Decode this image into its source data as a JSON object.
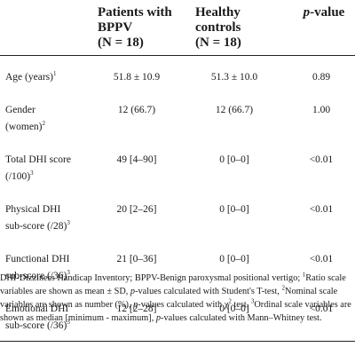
{
  "table": {
    "headers": {
      "col1": "",
      "col2_line1": "Patients with",
      "col2_line2": "BPPV",
      "col2_line3": "(N = 18)",
      "col3_line1": "Healthy",
      "col3_line2": "controls",
      "col3_line3": "(N = 18)",
      "col4_p": "p",
      "col4_rest": "-value"
    },
    "rows": [
      {
        "label_line1": "Age (years)",
        "label_sup1": "1",
        "label_line2": "",
        "label_sup2": "",
        "patients": "51.8 ± 10.9",
        "controls": "51.3 ± 10.0",
        "p": "0.89"
      },
      {
        "label_line1": "Gender",
        "label_sup1": "",
        "label_line2": "(women)",
        "label_sup2": "2",
        "patients": "12 (66.7)",
        "controls": "12 (66.7)",
        "p": "1.00"
      },
      {
        "label_line1": "Total DHI score",
        "label_sup1": "",
        "label_line2": "(/100)",
        "label_sup2": "3",
        "patients": "49 [4–90]",
        "controls": "0 [0–0]",
        "p": "<0.01"
      },
      {
        "label_line1": "Physical DHI",
        "label_sup1": "",
        "label_line2": "sub-score (/28)",
        "label_sup2": "3",
        "patients": "20 [2–26]",
        "controls": "0 [0–0]",
        "p": "<0.01"
      },
      {
        "label_line1": "Functional DHI",
        "label_sup1": "",
        "label_line2": "sub-score (/36)",
        "label_sup2": "3",
        "patients": "21 [0–36]",
        "controls": "0 [0–0]",
        "p": "<0.01"
      },
      {
        "label_line1": "Emotional DHI",
        "label_sup1": "",
        "label_line2": "sub-score (/36)",
        "label_sup2": "3",
        "patients": "12 [2–28]",
        "controls": "0 [0–0]",
        "p": "<0.01"
      }
    ]
  },
  "footnote": {
    "part1": "DHI-Dizziness Handicap Inventory; BPPV-Benign paroxysmal positional vertigo; ",
    "sup1": "1",
    "part2": "Ratio scale variables are shown as mean ± SD, ",
    "p1": "p",
    "part3": "-values calculated with Student's T-test, ",
    "sup2": "2",
    "part4": "Nominal scale variables are shown as number (%), ",
    "p2": "p",
    "part5": "-values calculated with χ",
    "sup_chi": "2",
    "part6": " test, ",
    "sup3": "3",
    "part7": "Ordinal scale variables are shown as median [minimum - maximum], ",
    "p3": "p",
    "part8": "-values calculated with Mann–Whitney test."
  }
}
